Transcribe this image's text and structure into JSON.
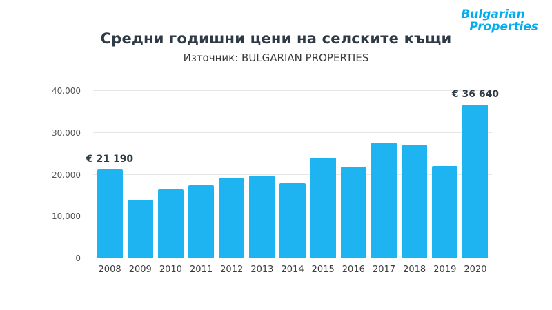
{
  "logo": {
    "line1": "Bulgarian",
    "line2": "Properties",
    "color": "#00AEEF"
  },
  "header": {
    "title": "Средни годишни цени на селските къщи",
    "subtitle": "Източник: BULGARIAN PROPERTIES"
  },
  "chart_data": {
    "type": "bar",
    "title": "Средни годишни цени на селските къщи",
    "subtitle": "Източник: BULGARIAN PROPERTIES",
    "categories": [
      "2008",
      "2009",
      "2010",
      "2011",
      "2012",
      "2013",
      "2014",
      "2015",
      "2016",
      "2017",
      "2018",
      "2019",
      "2020"
    ],
    "values": [
      21190,
      14000,
      16400,
      17500,
      19300,
      19800,
      18000,
      24100,
      21900,
      27600,
      27200,
      22100,
      36640
    ],
    "xlabel": "",
    "ylabel": "",
    "ylim": [
      0,
      40000
    ],
    "yticks": [
      0,
      10000,
      20000,
      30000,
      40000
    ],
    "ytick_labels": [
      "0",
      "10,000",
      "20,000",
      "30,000",
      "40,000"
    ],
    "grid": true,
    "legend": "none",
    "bar_color": "#1eb4f2",
    "annotations": [
      {
        "category": "2008",
        "text": "€ 21 190"
      },
      {
        "category": "2020",
        "text": "€ 36 640"
      }
    ]
  }
}
